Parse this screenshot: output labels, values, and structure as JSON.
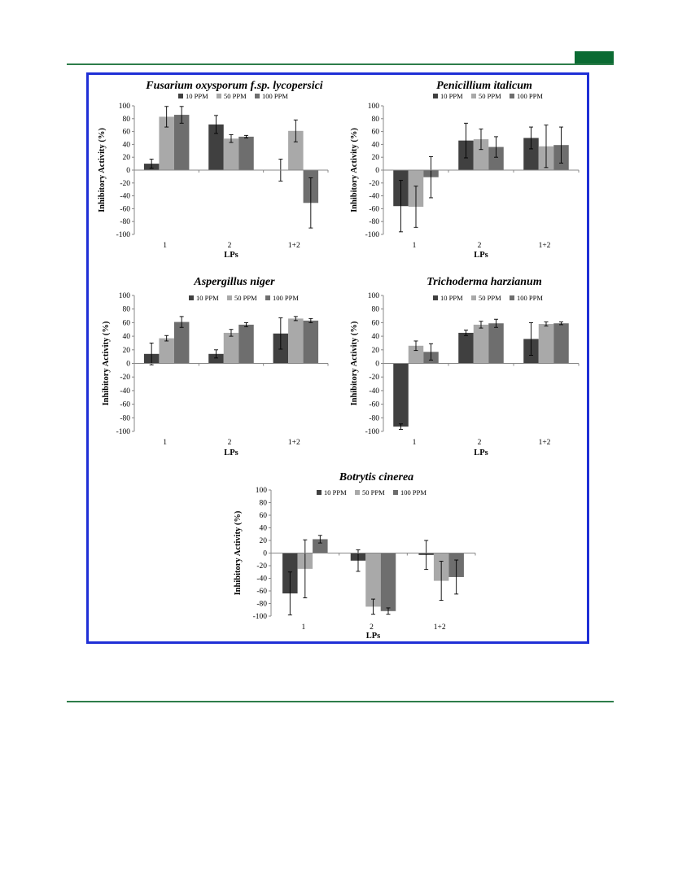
{
  "colors": {
    "rule": "#2e7d4a",
    "tab": "#0b6b33",
    "frame": "#1f2fd6",
    "series": [
      "#404040",
      "#a9a9a9",
      "#6e6e6e"
    ]
  },
  "chart_data": [
    {
      "type": "bar",
      "title": "Fusarium oxysporum f.sp. lycopersici",
      "xlabel": "LPs",
      "ylabel": "Inhibitory Activity (%)",
      "ylim": [
        -100,
        100
      ],
      "yticks": [
        "100",
        "80",
        "60",
        "40",
        "20",
        "0",
        "-20",
        "-40",
        "-60",
        "-80",
        "-100"
      ],
      "categories": [
        "1",
        "2",
        "1+2"
      ],
      "legend_position": "top",
      "series": [
        {
          "name": "10 PPM",
          "values": [
            10,
            71,
            0
          ],
          "errors": [
            7,
            14,
            17
          ]
        },
        {
          "name": "50 PPM",
          "values": [
            83,
            49,
            61
          ],
          "errors": [
            16,
            6,
            17
          ]
        },
        {
          "name": "100 PPM",
          "values": [
            86,
            52,
            -51
          ],
          "errors": [
            13,
            2,
            39
          ]
        }
      ]
    },
    {
      "type": "bar",
      "title": "Penicillium italicum",
      "xlabel": "LPs",
      "ylabel": "Inhibitory Activity (%)",
      "ylim": [
        -100,
        100
      ],
      "yticks": [
        "100",
        "80",
        "60",
        "40",
        "20",
        "0",
        "-20",
        "-40",
        "-60",
        "-80",
        "-100"
      ],
      "categories": [
        "1",
        "2",
        "1+2"
      ],
      "legend_position": "top",
      "series": [
        {
          "name": "10 PPM",
          "values": [
            -56,
            46,
            50
          ],
          "errors": [
            40,
            27,
            17
          ]
        },
        {
          "name": "50 PPM",
          "values": [
            -57,
            48,
            37
          ],
          "errors": [
            32,
            16,
            33
          ]
        },
        {
          "name": "100 PPM",
          "values": [
            -11,
            36,
            39
          ],
          "errors": [
            32,
            16,
            28
          ]
        }
      ]
    },
    {
      "type": "bar",
      "title": "Aspergillus niger",
      "xlabel": "LPs",
      "ylabel": "Inhibitory Activity (%)",
      "ylim": [
        -100,
        100
      ],
      "yticks": [
        "100",
        "80",
        "60",
        "40",
        "20",
        "0",
        "-20",
        "-40",
        "-60",
        "-80",
        "-100"
      ],
      "categories": [
        "1",
        "2",
        "1+2"
      ],
      "legend_position": "top",
      "series": [
        {
          "name": "10 PPM",
          "values": [
            14,
            14,
            44
          ],
          "errors": [
            16,
            6,
            23
          ]
        },
        {
          "name": "50 PPM",
          "values": [
            37,
            45,
            66
          ],
          "errors": [
            4,
            5,
            3
          ]
        },
        {
          "name": "100 PPM",
          "values": [
            61,
            57,
            63
          ],
          "errors": [
            8,
            3,
            3
          ]
        }
      ]
    },
    {
      "type": "bar",
      "title": "Trichoderma harzianum",
      "xlabel": "LPs",
      "ylabel": "Inhibitory Activity (%)",
      "ylim": [
        -100,
        100
      ],
      "yticks": [
        "100",
        "80",
        "60",
        "40",
        "20",
        "0",
        "-20",
        "-40",
        "-60",
        "-80",
        "-100"
      ],
      "categories": [
        "1",
        "2",
        "1+2"
      ],
      "legend_position": "top",
      "series": [
        {
          "name": "10 PPM",
          "values": [
            -93,
            45,
            36
          ],
          "errors": [
            4,
            4,
            24
          ]
        },
        {
          "name": "50 PPM",
          "values": [
            26,
            57,
            58
          ],
          "errors": [
            7,
            5,
            3
          ]
        },
        {
          "name": "100 PPM",
          "values": [
            17,
            59,
            59
          ],
          "errors": [
            12,
            6,
            2
          ]
        }
      ]
    },
    {
      "type": "bar",
      "title": "Botrytis cinerea",
      "xlabel": "LPs",
      "ylabel": "Inhibitory Activity (%)",
      "ylim": [
        -100,
        100
      ],
      "yticks": [
        "100",
        "80",
        "60",
        "40",
        "20",
        "0",
        "-20",
        "-40",
        "-60",
        "-80",
        "-100"
      ],
      "categories": [
        "1",
        "2",
        "1+2"
      ],
      "legend_position": "top",
      "series": [
        {
          "name": "10 PPM",
          "values": [
            -64,
            -12,
            -3
          ],
          "errors": [
            34,
            17,
            23
          ]
        },
        {
          "name": "50 PPM",
          "values": [
            -25,
            -85,
            -44
          ],
          "errors": [
            46,
            12,
            31
          ]
        },
        {
          "name": "100 PPM",
          "values": [
            22,
            -92,
            -38
          ],
          "errors": [
            6,
            5,
            27
          ]
        }
      ]
    }
  ]
}
